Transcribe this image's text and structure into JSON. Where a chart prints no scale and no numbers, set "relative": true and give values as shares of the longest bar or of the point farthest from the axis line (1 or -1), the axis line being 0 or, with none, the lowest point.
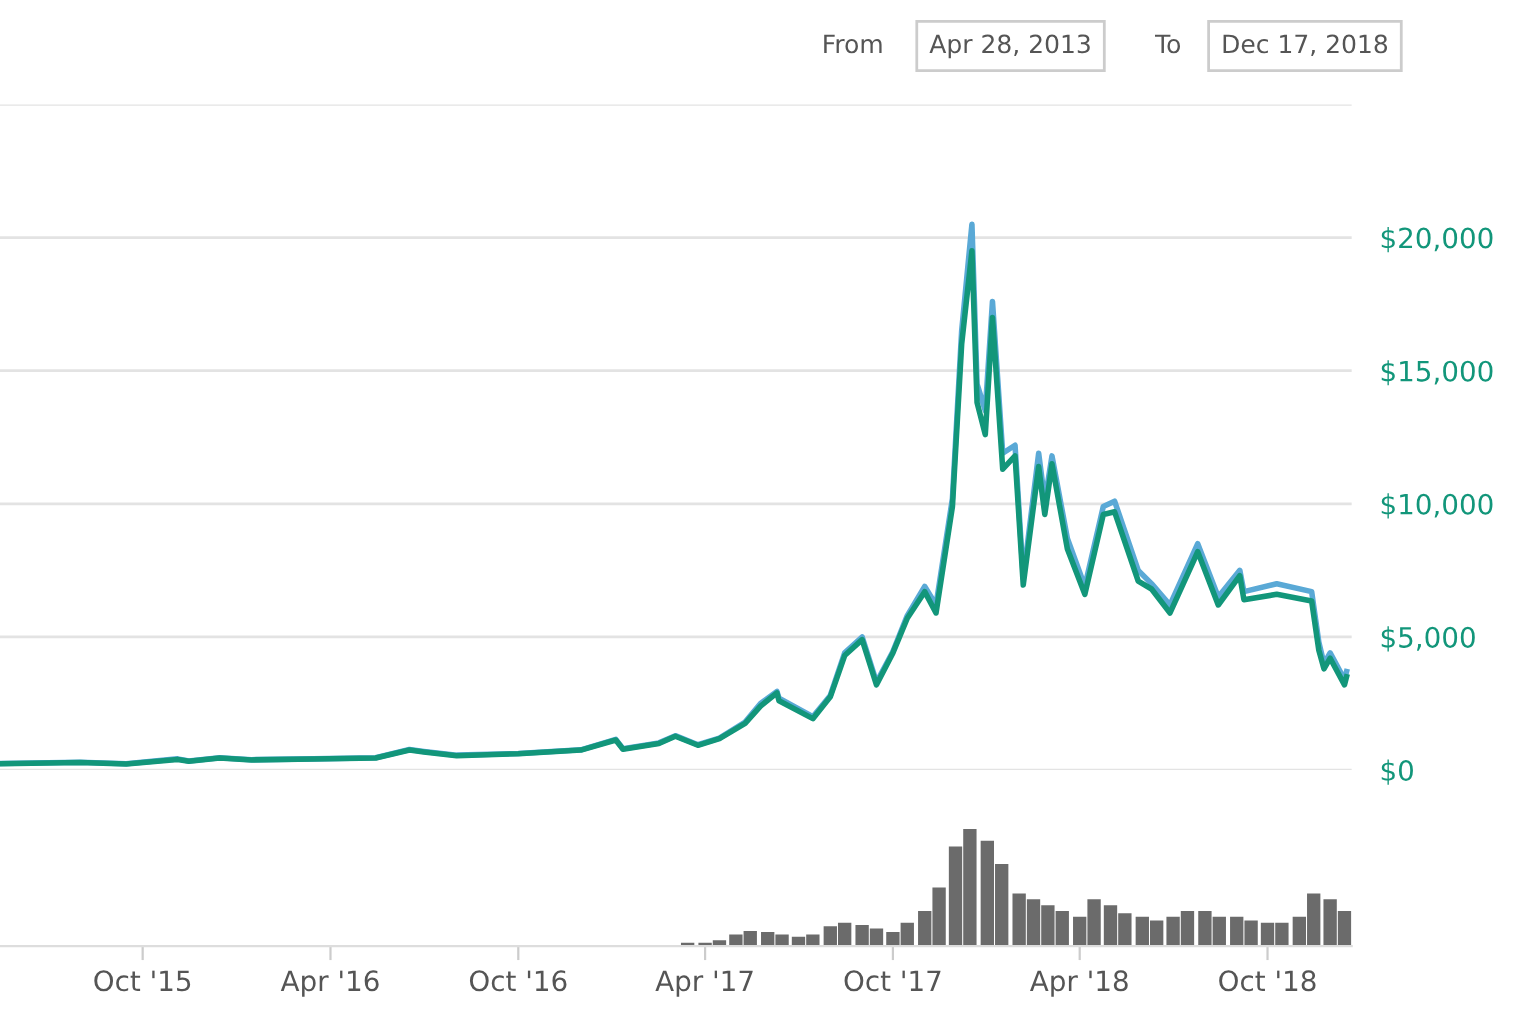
{
  "chart_data": [
    {
      "type": "line",
      "annotations": [
        "From",
        "Apr 28, 2013",
        "To",
        "Dec 17, 2018"
      ],
      "x": [
        "2015-05-15",
        "2015-08-01",
        "2015-09-15",
        "2015-11-04",
        "2015-11-15",
        "2015-12-15",
        "2016-01-15",
        "2016-03-15",
        "2016-05-15",
        "2016-06-17",
        "2016-07-01",
        "2016-08-02",
        "2016-10-01",
        "2016-12-01",
        "2017-01-04",
        "2017-01-11",
        "2017-02-15",
        "2017-03-03",
        "2017-03-25",
        "2017-04-15",
        "2017-05-10",
        "2017-05-25",
        "2017-06-10",
        "2017-06-12",
        "2017-07-15",
        "2017-08-01",
        "2017-08-15",
        "2017-09-01",
        "2017-09-15",
        "2017-10-01",
        "2017-10-15",
        "2017-11-01",
        "2017-11-12",
        "2017-11-28",
        "2017-12-07",
        "2017-12-17",
        "2017-12-22",
        "2017-12-30",
        "2018-01-06",
        "2018-01-16",
        "2018-01-28",
        "2018-02-05",
        "2018-02-20",
        "2018-02-26",
        "2018-03-05",
        "2018-03-20",
        "2018-04-06",
        "2018-04-24",
        "2018-05-05",
        "2018-05-28",
        "2018-06-10",
        "2018-06-28",
        "2018-07-25",
        "2018-08-14",
        "2018-09-04",
        "2018-09-08",
        "2018-10-10",
        "2018-11-13",
        "2018-11-20",
        "2018-11-25",
        "2018-12-01",
        "2018-12-15",
        "2018-12-17"
      ],
      "series": [
        {
          "color": "#5aa9d6",
          "values": [
            245,
            290,
            240,
            420,
            340,
            460,
            390,
            420,
            460,
            770,
            700,
            560,
            620,
            760,
            1150,
            800,
            1020,
            1290,
            950,
            1200,
            1800,
            2500,
            2950,
            2700,
            2000,
            2800,
            4400,
            5000,
            3300,
            4450,
            5800,
            6900,
            6200,
            10200,
            16500,
            20500,
            14500,
            13500,
            17600,
            11900,
            12200,
            7200,
            11900,
            10100,
            11800,
            8700,
            6900,
            9900,
            10100,
            7500,
            7000,
            6200,
            8500,
            6500,
            7500,
            6700,
            7000,
            6700,
            4800,
            4000,
            4400,
            3400,
            3700
          ]
        },
        {
          "color": "#12967a",
          "values": [
            240,
            280,
            230,
            400,
            330,
            450,
            380,
            415,
            455,
            750,
            680,
            540,
            615,
            750,
            1130,
            780,
            1000,
            1270,
            930,
            1180,
            1750,
            2400,
            2900,
            2600,
            1930,
            2750,
            4300,
            4900,
            3200,
            4400,
            5700,
            6700,
            5900,
            9900,
            16000,
            19500,
            13800,
            12600,
            17000,
            11300,
            11800,
            6950,
            11400,
            9600,
            11500,
            8300,
            6600,
            9600,
            9700,
            7100,
            6800,
            5900,
            8200,
            6200,
            7300,
            6400,
            6600,
            6350,
            4500,
            3800,
            4200,
            3200,
            3500
          ]
        }
      ],
      "xlim": [
        "2015-05-15",
        "2018-12-22"
      ],
      "ylim": [
        0,
        25000
      ],
      "yticks": [
        {
          "value": 0,
          "label": "$0"
        },
        {
          "value": 5000,
          "label": "$5,000"
        },
        {
          "value": 10000,
          "label": "$10,000"
        },
        {
          "value": 15000,
          "label": "$15,000"
        },
        {
          "value": 20000,
          "label": "$20,000"
        },
        {
          "value": 25000,
          "label": null
        }
      ],
      "grid": "y",
      "tick_labels": "y",
      "legend": false
    },
    {
      "type": "bar",
      "relative": true,
      "color": "#6b6b6b",
      "x": [
        "2017-03-15",
        "2017-04-01",
        "2017-04-15",
        "2017-05-01",
        "2017-05-15",
        "2017-06-01",
        "2017-06-15",
        "2017-07-01",
        "2017-07-15",
        "2017-08-01",
        "2017-08-15",
        "2017-09-01",
        "2017-09-15",
        "2017-10-01",
        "2017-10-15",
        "2017-11-01",
        "2017-11-15",
        "2017-12-01",
        "2017-12-15",
        "2018-01-01",
        "2018-01-15",
        "2018-02-01",
        "2018-02-15",
        "2018-03-01",
        "2018-03-15",
        "2018-04-01",
        "2018-04-15",
        "2018-05-01",
        "2018-05-15",
        "2018-06-01",
        "2018-06-15",
        "2018-07-01",
        "2018-07-15",
        "2018-08-01",
        "2018-08-15",
        "2018-09-01",
        "2018-09-15",
        "2018-10-01",
        "2018-10-15",
        "2018-11-01",
        "2018-11-15",
        "2018-12-01",
        "2018-12-15"
      ],
      "values": [
        0.03,
        0.03,
        0.05,
        0.1,
        0.13,
        0.12,
        0.1,
        0.08,
        0.1,
        0.17,
        0.2,
        0.18,
        0.15,
        0.12,
        0.2,
        0.3,
        0.5,
        0.85,
        1.0,
        0.9,
        0.7,
        0.45,
        0.4,
        0.35,
        0.3,
        0.25,
        0.4,
        0.35,
        0.28,
        0.25,
        0.22,
        0.25,
        0.3,
        0.3,
        0.25,
        0.25,
        0.22,
        0.2,
        0.2,
        0.25,
        0.45,
        0.4,
        0.3
      ],
      "xlim": [
        "2015-05-15",
        "2018-12-22"
      ],
      "xticks": [
        {
          "value": "2015-10-01",
          "label": "Oct '15"
        },
        {
          "value": "2016-04-01",
          "label": "Apr '16"
        },
        {
          "value": "2016-10-01",
          "label": "Oct '16"
        },
        {
          "value": "2017-04-01",
          "label": "Apr '17"
        },
        {
          "value": "2017-10-01",
          "label": "Oct '17"
        },
        {
          "value": "2018-04-01",
          "label": "Apr '18"
        },
        {
          "value": "2018-10-01",
          "label": "Oct '18"
        }
      ],
      "tick_labels": "x",
      "legend": false
    }
  ]
}
